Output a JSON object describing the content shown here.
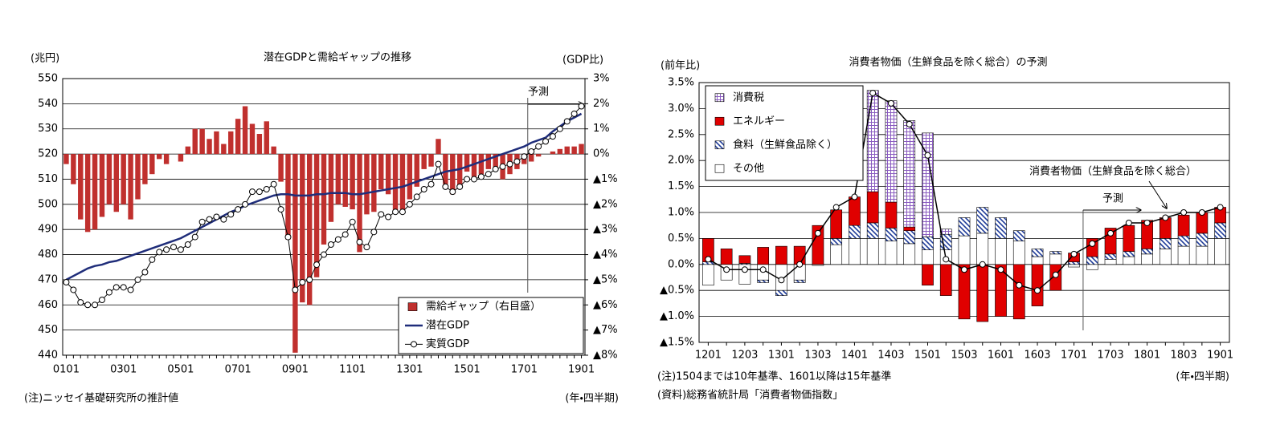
{
  "chart_data": [
    {
      "type": "combo",
      "title": "潜在GDPと需給ギャップの推移",
      "y_label": "(兆円)",
      "y2_label": "(GDP比)",
      "x_label": "(年・四半期)",
      "notes": [
        "(注)ニッセイ基礎研究所の推計値"
      ],
      "forecast_label": "予測",
      "categories": [
        "0101",
        null,
        null,
        null,
        null,
        null,
        null,
        null,
        "0301",
        null,
        null,
        null,
        null,
        null,
        null,
        null,
        "0501",
        null,
        null,
        null,
        null,
        null,
        null,
        null,
        "0701",
        null,
        null,
        null,
        null,
        null,
        null,
        null,
        "0901",
        null,
        null,
        null,
        null,
        null,
        null,
        null,
        "1101",
        null,
        null,
        null,
        null,
        null,
        null,
        null,
        "1301",
        null,
        null,
        null,
        null,
        null,
        null,
        null,
        "1501",
        null,
        null,
        null,
        null,
        null,
        null,
        null,
        "1701",
        null,
        null,
        null,
        null,
        null,
        null,
        null,
        "1901"
      ],
      "ylim": [
        440,
        550
      ],
      "yticks": [
        440,
        450,
        460,
        470,
        480,
        490,
        500,
        510,
        520,
        530,
        540,
        550
      ],
      "y2lim": [
        -8,
        3
      ],
      "y2ticks": [
        {
          "value": 3,
          "label": "3%"
        },
        {
          "value": 2,
          "label": "2%"
        },
        {
          "value": 1,
          "label": "1%"
        },
        {
          "value": 0,
          "label": "0%"
        },
        {
          "value": -1,
          "label": "▲1%"
        },
        {
          "value": -2,
          "label": "▲2%"
        },
        {
          "value": -3,
          "label": "▲3%"
        },
        {
          "value": -4,
          "label": "▲4%"
        },
        {
          "value": -5,
          "label": "▲5%"
        },
        {
          "value": -6,
          "label": "▲6%"
        },
        {
          "value": -7,
          "label": "▲7%"
        },
        {
          "value": -8,
          "label": "▲8%"
        }
      ],
      "grid": true,
      "legend": "lower right",
      "series": [
        {
          "name": "需給ギャップ（右目盛）",
          "kind": "bar",
          "axis": "y2",
          "color": "#c0302e",
          "values": [
            -0.4,
            -1.2,
            -2.6,
            -3.1,
            -3.0,
            -2.5,
            -2.0,
            -2.3,
            -2.0,
            -2.6,
            -1.8,
            -1.2,
            -0.8,
            -0.2,
            -0.4,
            0.0,
            -0.3,
            0.3,
            1.0,
            1.0,
            0.6,
            0.9,
            0.4,
            0.9,
            1.4,
            1.9,
            1.2,
            0.8,
            1.3,
            0.3,
            -1.1,
            -3.4,
            -7.9,
            -5.9,
            -6.0,
            -4.9,
            -3.6,
            -2.7,
            -2.0,
            -2.1,
            -2.2,
            -3.9,
            -2.4,
            -2.3,
            -1.4,
            -1.6,
            -2.3,
            -2.2,
            -1.8,
            -1.3,
            -0.6,
            -0.5,
            0.6,
            -1.2,
            -1.6,
            -1.3,
            -0.7,
            -0.9,
            -0.8,
            -0.6,
            -0.6,
            -1.0,
            -0.8,
            -0.6,
            -0.4,
            -0.3,
            -0.1,
            0.0,
            0.1,
            0.2,
            0.3,
            0.3,
            0.4
          ]
        },
        {
          "name": "潜在GDP",
          "kind": "line",
          "color": "#1f2d7a",
          "width": 2.5,
          "values": [
            470.0,
            471.5,
            473.0,
            474.5,
            475.5,
            476.0,
            477.0,
            477.5,
            478.5,
            479.5,
            480.5,
            481.5,
            482.5,
            483.5,
            484.5,
            485.5,
            486.5,
            488.0,
            489.5,
            491.0,
            492.5,
            494.0,
            495.5,
            497.0,
            498.0,
            499.5,
            500.5,
            501.5,
            502.5,
            503.5,
            504.0,
            504.0,
            503.5,
            503.5,
            503.5,
            504.0,
            504.0,
            504.5,
            504.5,
            504.5,
            504.0,
            504.0,
            504.5,
            505.0,
            505.5,
            506.0,
            506.5,
            507.0,
            508.0,
            509.0,
            510.0,
            511.0,
            512.0,
            513.0,
            513.5,
            514.0,
            515.0,
            516.0,
            517.0,
            518.0,
            519.0,
            520.0,
            521.0,
            522.0,
            523.0,
            524.5,
            525.5,
            526.5,
            529.0,
            531.0,
            533.0,
            534.5,
            536.0
          ]
        },
        {
          "name": "実質GDP",
          "kind": "line",
          "color": "#000000",
          "width": 1,
          "marker": "circle",
          "values": [
            469,
            466,
            461,
            460,
            460,
            462,
            465,
            467,
            467,
            466,
            470,
            473,
            478,
            481,
            482,
            483,
            482,
            484,
            487,
            493,
            494,
            495,
            494,
            496,
            498,
            500,
            505,
            505,
            506,
            508,
            498,
            487,
            466,
            469,
            470,
            476,
            480,
            484,
            486,
            488,
            493,
            485,
            483,
            489,
            496,
            495,
            497,
            497,
            500,
            503,
            506,
            508,
            516,
            507,
            505,
            507,
            510,
            510,
            511,
            512,
            514,
            515,
            516,
            517,
            519,
            521,
            523,
            525,
            527,
            530,
            533,
            536,
            539
          ]
        }
      ]
    },
    {
      "type": "combo",
      "title": "消費者物価（生鮮食品を除く総合）の予測",
      "y_label": "(前年比)",
      "x_label": "(年・四半期)",
      "notes": [
        "(注)1504までは10年基準、1601以降は15年基準",
        "(資料)総務省統計局「消費者物価指数」"
      ],
      "forecast_label": "予測",
      "stacked": true,
      "categories": [
        "1201",
        null,
        "1203",
        null,
        "1301",
        null,
        "1303",
        null,
        "1401",
        null,
        "1403",
        null,
        "1501",
        null,
        "1503",
        null,
        "1601",
        null,
        "1603",
        null,
        "1701",
        null,
        "1703",
        null,
        "1801",
        null,
        "1803",
        null,
        "1901"
      ],
      "ylim": [
        -1.5,
        3.5
      ],
      "yticks": [
        {
          "value": 3.5,
          "label": "3.5%"
        },
        {
          "value": 3.0,
          "label": "3.0%"
        },
        {
          "value": 2.5,
          "label": "2.5%"
        },
        {
          "value": 2.0,
          "label": "2.0%"
        },
        {
          "value": 1.5,
          "label": "1.5%"
        },
        {
          "value": 1.0,
          "label": "1.0%"
        },
        {
          "value": 0.5,
          "label": "0.5%"
        },
        {
          "value": 0,
          "label": "0.0%"
        },
        {
          "value": -0.5,
          "label": "▲0.5%"
        },
        {
          "value": -1.0,
          "label": "▲1.0%"
        },
        {
          "value": -1.5,
          "label": "▲1.5%"
        }
      ],
      "grid": true,
      "legend": "upper left",
      "series": [
        {
          "name": "消費税",
          "kind": "bar",
          "color": "#8a5cc0",
          "pattern": "check",
          "values": [
            0,
            0,
            0,
            0,
            0,
            0,
            0,
            0,
            0,
            1.95,
            1.95,
            2.05,
            2.0,
            0.1,
            0,
            0,
            0,
            0,
            0,
            0,
            0,
            0,
            0,
            0,
            0,
            0,
            0,
            0,
            0
          ]
        },
        {
          "name": "エネルギー",
          "kind": "bar",
          "color": "#e00000",
          "values": [
            0.45,
            0.3,
            0.15,
            0.33,
            0.35,
            0.35,
            0.75,
            0.55,
            0.55,
            0.6,
            0.5,
            0.07,
            -0.4,
            -0.6,
            -1.05,
            -1.1,
            -1.0,
            -1.05,
            -0.8,
            -0.5,
            0.17,
            0.35,
            0.5,
            0.5,
            0.55,
            0.4,
            0.4,
            0.4,
            0.3
          ]
        },
        {
          "name": "食料（生鮮食品除く）",
          "kind": "bar",
          "color": "#1f3c99",
          "pattern": "hatch",
          "values": [
            0.05,
            0,
            0.02,
            -0.05,
            -0.1,
            -0.05,
            0,
            0.12,
            0.25,
            0.3,
            0.25,
            0.25,
            0.25,
            0.3,
            0.35,
            0.5,
            0.4,
            0.2,
            0.15,
            0.05,
            0.05,
            0.15,
            0.1,
            0.1,
            0.1,
            0.2,
            0.2,
            0.25,
            0.3
          ]
        },
        {
          "name": "その他",
          "kind": "bar",
          "color": "#ffffff",
          "values": [
            -0.4,
            -0.3,
            -0.38,
            -0.3,
            -0.5,
            -0.3,
            -0.02,
            0.38,
            0.5,
            0.5,
            0.45,
            0.4,
            0.28,
            0.28,
            0.55,
            0.6,
            0.5,
            0.45,
            0.15,
            0.2,
            -0.05,
            -0.1,
            0.1,
            0.15,
            0.2,
            0.3,
            0.35,
            0.35,
            0.5
          ]
        },
        {
          "name": "消費者物価（生鮮食品を除く総合）",
          "kind": "line",
          "color": "#000000",
          "width": 1.5,
          "marker": "circle",
          "annotate": true,
          "values": [
            0.1,
            -0.1,
            -0.1,
            -0.1,
            -0.3,
            0.0,
            0.6,
            1.1,
            1.3,
            3.3,
            3.1,
            2.7,
            2.1,
            0.1,
            -0.1,
            0.0,
            -0.1,
            -0.4,
            -0.5,
            -0.2,
            0.2,
            0.4,
            0.6,
            0.8,
            0.8,
            0.9,
            1.0,
            1.0,
            1.1
          ]
        }
      ]
    }
  ]
}
